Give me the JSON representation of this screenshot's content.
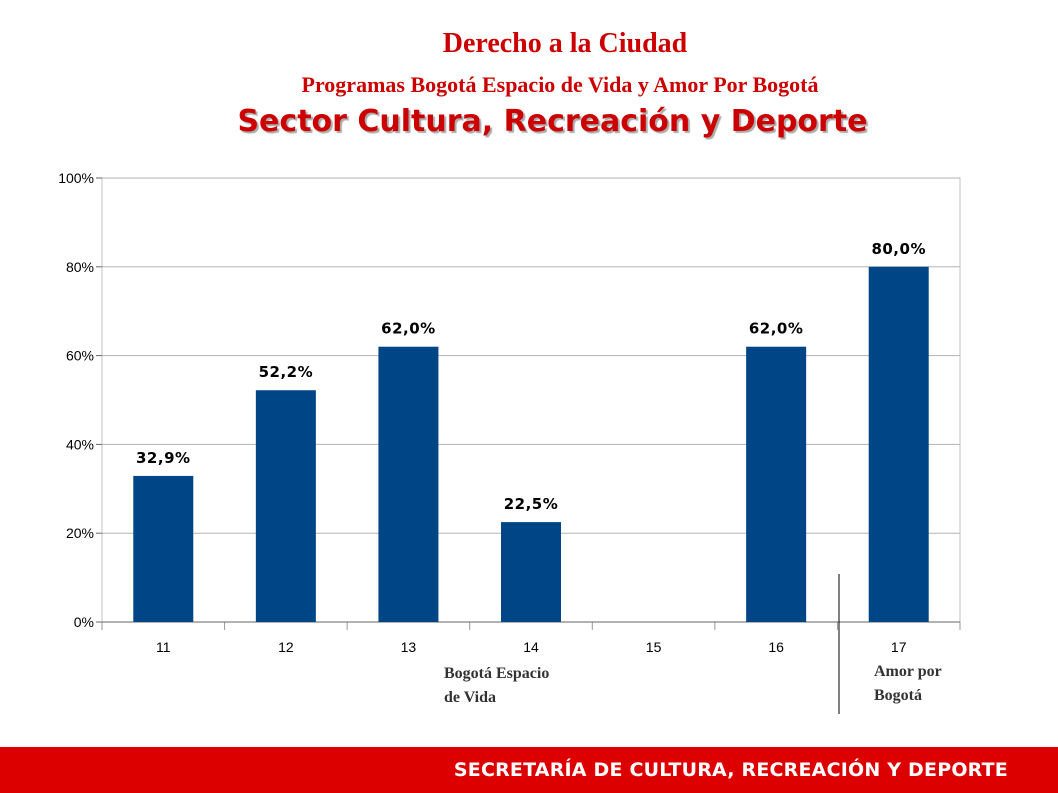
{
  "header": {
    "title": "Derecho a la Ciudad",
    "subtitle": "Programas Bogotá Espacio de Vida y Amor Por Bogotá",
    "sector": "Sector Cultura, Recreación y Deporte"
  },
  "chart_data": {
    "type": "bar",
    "categories": [
      "11",
      "12",
      "13",
      "14",
      "15",
      "16",
      "17"
    ],
    "values": [
      32.9,
      52.2,
      62.0,
      22.5,
      null,
      62.0,
      80.0
    ],
    "data_labels": [
      "32,9%",
      "52,2%",
      "62,0%",
      "22,5%",
      "",
      "62,0%",
      "80,0%"
    ],
    "y_ticks": [
      "0%",
      "20%",
      "40%",
      "60%",
      "80%",
      "100%"
    ],
    "ylim": [
      0,
      100
    ],
    "grid": true,
    "bar_color": "#004586",
    "group_labels": [
      {
        "lines": [
          "Bogotá Espacio",
          "de Vida"
        ]
      },
      {
        "lines": [
          "Amor por",
          "Bogotá"
        ]
      }
    ]
  },
  "footer": {
    "text": "SECRETARÍA DE CULTURA, RECREACIÓN Y DEPORTE",
    "color": "#dd0000"
  }
}
